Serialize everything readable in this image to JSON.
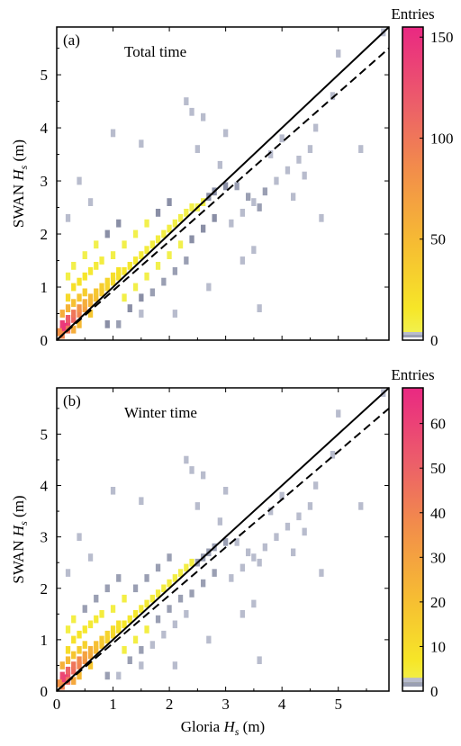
{
  "x_axis_label": "Gloria",
  "y_axis_label": "SWAN",
  "axis_symbol": "H",
  "axis_subscript": "s",
  "axis_unit": "(m)",
  "chart_data": [
    {
      "type": "heatmap",
      "panel_tag": "(a)",
      "title": "Total time",
      "xlim": [
        0,
        5.9
      ],
      "ylim": [
        0,
        5.9
      ],
      "x_ticks": [
        "0",
        "1",
        "2",
        "3",
        "4",
        "5"
      ],
      "y_ticks": [
        "0",
        "1",
        "2",
        "3",
        "4",
        "5"
      ],
      "lines": [
        {
          "style": "solid",
          "x": [
            0,
            5.9
          ],
          "y": [
            0,
            5.9
          ]
        },
        {
          "style": "dashed",
          "x": [
            0,
            5.9
          ],
          "y": [
            0,
            5.5
          ]
        }
      ],
      "colorbar": {
        "title": "Entries",
        "min": 0,
        "max": 155,
        "ticks": [
          "0",
          "50",
          "100",
          "150"
        ],
        "tick_values": [
          0,
          50,
          100,
          150
        ]
      },
      "bins": [
        [
          0.1,
          0.2,
          150
        ],
        [
          0.1,
          0.3,
          140
        ],
        [
          0.2,
          0.3,
          135
        ],
        [
          0.2,
          0.4,
          120
        ],
        [
          0.3,
          0.4,
          110
        ],
        [
          0.15,
          0.25,
          145
        ],
        [
          0.3,
          0.5,
          100
        ],
        [
          0.4,
          0.5,
          90
        ],
        [
          0.4,
          0.6,
          80
        ],
        [
          0.5,
          0.6,
          70
        ],
        [
          0.5,
          0.7,
          60
        ],
        [
          0.6,
          0.7,
          55
        ],
        [
          0.6,
          0.8,
          50
        ],
        [
          0.7,
          0.8,
          45
        ],
        [
          0.7,
          0.9,
          40
        ],
        [
          0.8,
          0.9,
          38
        ],
        [
          0.8,
          1.0,
          35
        ],
        [
          0.9,
          1.0,
          30
        ],
        [
          0.9,
          1.1,
          28
        ],
        [
          1.0,
          1.1,
          25
        ],
        [
          1.0,
          1.2,
          22
        ],
        [
          1.1,
          1.2,
          20
        ],
        [
          1.1,
          1.3,
          18
        ],
        [
          1.2,
          1.3,
          15
        ],
        [
          0.1,
          0.5,
          60
        ],
        [
          0.2,
          0.6,
          55
        ],
        [
          0.3,
          0.7,
          45
        ],
        [
          0.4,
          0.8,
          40
        ],
        [
          0.5,
          0.9,
          35
        ],
        [
          0.2,
          0.8,
          25
        ],
        [
          0.3,
          1.0,
          20
        ],
        [
          0.4,
          1.1,
          18
        ],
        [
          0.5,
          1.2,
          15
        ],
        [
          0.6,
          1.3,
          12
        ],
        [
          0.7,
          1.4,
          10
        ],
        [
          0.8,
          1.5,
          8
        ],
        [
          1.3,
          1.4,
          14
        ],
        [
          1.4,
          1.5,
          12
        ],
        [
          1.5,
          1.6,
          10
        ],
        [
          1.6,
          1.7,
          9
        ],
        [
          1.7,
          1.8,
          8
        ],
        [
          1.8,
          1.9,
          8
        ],
        [
          1.9,
          2.0,
          7
        ],
        [
          2.0,
          2.1,
          7
        ],
        [
          2.1,
          2.2,
          6
        ],
        [
          2.2,
          2.3,
          6
        ],
        [
          2.3,
          2.4,
          5
        ],
        [
          2.4,
          2.5,
          5
        ],
        [
          2.5,
          2.5,
          4
        ],
        [
          2.6,
          2.6,
          4
        ],
        [
          2.7,
          2.7,
          3
        ],
        [
          2.8,
          2.8,
          3
        ],
        [
          3.0,
          2.9,
          3
        ],
        [
          3.2,
          2.9,
          2
        ],
        [
          3.4,
          2.7,
          2
        ],
        [
          3.6,
          2.5,
          2
        ],
        [
          3.7,
          2.8,
          2
        ],
        [
          1.2,
          0.8,
          6
        ],
        [
          1.4,
          1.0,
          5
        ],
        [
          1.6,
          1.2,
          5
        ],
        [
          1.8,
          1.4,
          4
        ],
        [
          2.0,
          1.6,
          4
        ],
        [
          2.2,
          1.8,
          4
        ],
        [
          2.4,
          1.9,
          3
        ],
        [
          2.6,
          2.1,
          3
        ],
        [
          2.8,
          2.3,
          3
        ],
        [
          1.0,
          1.6,
          6
        ],
        [
          1.2,
          1.8,
          5
        ],
        [
          1.4,
          2.0,
          4
        ],
        [
          1.6,
          2.2,
          4
        ],
        [
          1.8,
          2.4,
          3
        ],
        [
          2.0,
          2.6,
          3
        ],
        [
          0.3,
          1.4,
          5
        ],
        [
          0.5,
          1.6,
          4
        ],
        [
          0.7,
          1.8,
          4
        ],
        [
          0.9,
          2.0,
          3
        ],
        [
          1.1,
          2.2,
          3
        ],
        [
          0.2,
          1.2,
          6
        ],
        [
          1.3,
          0.6,
          3
        ],
        [
          1.5,
          0.8,
          3
        ],
        [
          1.7,
          0.9,
          2
        ],
        [
          1.9,
          1.1,
          2
        ],
        [
          2.1,
          1.3,
          2
        ],
        [
          2.3,
          1.5,
          2
        ],
        [
          3.1,
          2.2,
          1
        ],
        [
          3.3,
          2.4,
          1
        ],
        [
          3.5,
          2.6,
          1
        ],
        [
          3.9,
          3.0,
          1
        ],
        [
          4.1,
          3.2,
          1
        ],
        [
          4.3,
          3.4,
          1
        ],
        [
          4.5,
          3.6,
          1
        ],
        [
          4.6,
          4.0,
          1
        ],
        [
          4.0,
          3.8,
          1
        ],
        [
          3.8,
          3.5,
          1
        ],
        [
          2.9,
          3.3,
          1
        ],
        [
          2.5,
          3.6,
          1
        ],
        [
          1.0,
          3.9,
          1
        ],
        [
          2.3,
          4.5,
          1
        ],
        [
          5.0,
          5.4,
          1
        ],
        [
          5.4,
          3.6,
          1
        ],
        [
          4.9,
          4.6,
          1
        ],
        [
          3.6,
          0.6,
          1
        ],
        [
          2.1,
          0.5,
          1
        ],
        [
          0.4,
          3.0,
          1
        ],
        [
          0.2,
          2.3,
          1
        ],
        [
          2.4,
          4.3,
          1
        ],
        [
          1.5,
          3.7,
          1
        ],
        [
          4.7,
          2.3,
          1
        ],
        [
          3.0,
          3.9,
          1
        ],
        [
          2.6,
          4.2,
          1
        ],
        [
          1.1,
          0.3,
          2
        ],
        [
          1.5,
          0.5,
          1
        ],
        [
          4.4,
          3.1,
          1
        ],
        [
          4.2,
          2.7,
          1
        ],
        [
          3.5,
          1.7,
          1
        ],
        [
          3.3,
          1.5,
          1
        ],
        [
          2.7,
          1.0,
          1
        ],
        [
          0.6,
          2.6,
          1
        ],
        [
          5.8,
          5.8,
          1
        ],
        [
          0.9,
          0.3,
          3
        ],
        [
          0.1,
          0.1,
          90
        ],
        [
          0.2,
          0.2,
          100
        ],
        [
          0.05,
          0.15,
          80
        ],
        [
          0.3,
          0.2,
          60
        ],
        [
          0.4,
          0.3,
          50
        ],
        [
          0.6,
          0.5,
          40
        ]
      ]
    },
    {
      "type": "heatmap",
      "panel_tag": "(b)",
      "title": "Winter time",
      "xlim": [
        0,
        5.9
      ],
      "ylim": [
        0,
        5.9
      ],
      "x_ticks": [
        "0",
        "1",
        "2",
        "3",
        "4",
        "5"
      ],
      "y_ticks": [
        "0",
        "1",
        "2",
        "3",
        "4",
        "5"
      ],
      "lines": [
        {
          "style": "solid",
          "x": [
            0,
            5.9
          ],
          "y": [
            0,
            5.9
          ]
        },
        {
          "style": "dashed",
          "x": [
            0,
            5.9
          ],
          "y": [
            0,
            5.5
          ]
        }
      ],
      "colorbar": {
        "title": "Entries",
        "min": 0,
        "max": 68,
        "ticks": [
          "0",
          "10",
          "20",
          "30",
          "40",
          "50",
          "60"
        ],
        "tick_values": [
          0,
          10,
          20,
          30,
          40,
          50,
          60
        ]
      },
      "bins": [
        [
          0.1,
          0.2,
          62
        ],
        [
          0.1,
          0.3,
          58
        ],
        [
          0.2,
          0.3,
          55
        ],
        [
          0.2,
          0.4,
          50
        ],
        [
          0.3,
          0.4,
          47
        ],
        [
          0.15,
          0.25,
          60
        ],
        [
          0.3,
          0.5,
          44
        ],
        [
          0.4,
          0.5,
          40
        ],
        [
          0.4,
          0.6,
          38
        ],
        [
          0.5,
          0.6,
          34
        ],
        [
          0.5,
          0.7,
          30
        ],
        [
          0.6,
          0.7,
          28
        ],
        [
          0.6,
          0.8,
          25
        ],
        [
          0.7,
          0.8,
          22
        ],
        [
          0.7,
          0.9,
          20
        ],
        [
          0.8,
          0.9,
          18
        ],
        [
          0.8,
          1.0,
          16
        ],
        [
          0.9,
          1.0,
          14
        ],
        [
          0.9,
          1.1,
          13
        ],
        [
          1.0,
          1.1,
          12
        ],
        [
          1.0,
          1.2,
          10
        ],
        [
          1.1,
          1.2,
          9
        ],
        [
          1.1,
          1.3,
          8
        ],
        [
          1.2,
          1.3,
          7
        ],
        [
          0.1,
          0.5,
          25
        ],
        [
          0.2,
          0.6,
          22
        ],
        [
          0.3,
          0.7,
          18
        ],
        [
          0.4,
          0.8,
          16
        ],
        [
          0.5,
          0.9,
          14
        ],
        [
          0.2,
          0.8,
          10
        ],
        [
          0.3,
          1.0,
          8
        ],
        [
          0.4,
          1.1,
          7
        ],
        [
          0.5,
          1.2,
          6
        ],
        [
          0.6,
          1.3,
          5
        ],
        [
          0.7,
          1.4,
          5
        ],
        [
          0.8,
          1.5,
          4
        ],
        [
          1.3,
          1.4,
          6
        ],
        [
          1.4,
          1.5,
          6
        ],
        [
          1.5,
          1.6,
          5
        ],
        [
          1.6,
          1.7,
          5
        ],
        [
          1.7,
          1.8,
          4
        ],
        [
          1.8,
          1.9,
          4
        ],
        [
          1.9,
          2.0,
          4
        ],
        [
          2.0,
          2.1,
          4
        ],
        [
          2.1,
          2.2,
          3
        ],
        [
          2.2,
          2.3,
          3
        ],
        [
          2.3,
          2.4,
          3
        ],
        [
          2.4,
          2.5,
          3
        ],
        [
          2.5,
          2.5,
          2
        ],
        [
          2.6,
          2.6,
          2
        ],
        [
          2.7,
          2.7,
          2
        ],
        [
          2.8,
          2.8,
          2
        ],
        [
          3.0,
          2.9,
          2
        ],
        [
          3.2,
          2.9,
          1
        ],
        [
          3.4,
          2.7,
          1
        ],
        [
          3.6,
          2.5,
          1
        ],
        [
          3.7,
          2.8,
          1
        ],
        [
          1.2,
          0.8,
          3
        ],
        [
          1.4,
          1.0,
          3
        ],
        [
          1.6,
          1.2,
          3
        ],
        [
          1.8,
          1.4,
          2
        ],
        [
          2.0,
          1.6,
          2
        ],
        [
          2.2,
          1.8,
          2
        ],
        [
          2.4,
          1.9,
          2
        ],
        [
          2.6,
          2.1,
          2
        ],
        [
          2.8,
          2.3,
          2
        ],
        [
          1.0,
          1.6,
          3
        ],
        [
          1.2,
          1.8,
          3
        ],
        [
          1.4,
          2.0,
          2
        ],
        [
          1.6,
          2.2,
          2
        ],
        [
          1.8,
          2.4,
          2
        ],
        [
          2.0,
          2.6,
          2
        ],
        [
          0.3,
          1.4,
          3
        ],
        [
          0.5,
          1.6,
          2
        ],
        [
          0.7,
          1.8,
          2
        ],
        [
          0.9,
          2.0,
          2
        ],
        [
          1.1,
          2.2,
          2
        ],
        [
          0.2,
          1.2,
          3
        ],
        [
          1.3,
          0.6,
          2
        ],
        [
          1.5,
          0.8,
          2
        ],
        [
          1.7,
          0.9,
          1
        ],
        [
          1.9,
          1.1,
          1
        ],
        [
          2.1,
          1.3,
          1
        ],
        [
          2.3,
          1.5,
          1
        ],
        [
          3.1,
          2.2,
          1
        ],
        [
          3.3,
          2.4,
          1
        ],
        [
          3.5,
          2.6,
          1
        ],
        [
          3.9,
          3.0,
          1
        ],
        [
          4.1,
          3.2,
          1
        ],
        [
          4.3,
          3.4,
          1
        ],
        [
          4.5,
          3.6,
          1
        ],
        [
          4.6,
          4.0,
          1
        ],
        [
          4.0,
          3.8,
          1
        ],
        [
          3.8,
          3.5,
          1
        ],
        [
          2.9,
          3.3,
          1
        ],
        [
          2.5,
          3.6,
          1
        ],
        [
          1.0,
          3.9,
          1
        ],
        [
          2.3,
          4.5,
          1
        ],
        [
          5.0,
          5.4,
          1
        ],
        [
          5.4,
          3.6,
          1
        ],
        [
          4.9,
          4.6,
          1
        ],
        [
          3.6,
          0.6,
          1
        ],
        [
          2.1,
          0.5,
          1
        ],
        [
          0.4,
          3.0,
          1
        ],
        [
          0.2,
          2.3,
          1
        ],
        [
          2.4,
          4.3,
          1
        ],
        [
          1.5,
          3.7,
          1
        ],
        [
          4.7,
          2.3,
          1
        ],
        [
          3.0,
          3.9,
          1
        ],
        [
          2.6,
          4.2,
          1
        ],
        [
          1.1,
          0.3,
          1
        ],
        [
          1.5,
          0.5,
          1
        ],
        [
          4.4,
          3.1,
          1
        ],
        [
          4.2,
          2.7,
          1
        ],
        [
          3.5,
          1.7,
          1
        ],
        [
          3.3,
          1.5,
          1
        ],
        [
          2.7,
          1.0,
          1
        ],
        [
          0.6,
          2.6,
          1
        ],
        [
          5.8,
          5.8,
          1
        ],
        [
          0.9,
          0.3,
          2
        ],
        [
          0.1,
          0.1,
          40
        ],
        [
          0.2,
          0.2,
          45
        ],
        [
          0.05,
          0.15,
          35
        ],
        [
          0.3,
          0.2,
          28
        ],
        [
          0.4,
          0.3,
          22
        ],
        [
          0.6,
          0.5,
          18
        ]
      ]
    }
  ]
}
